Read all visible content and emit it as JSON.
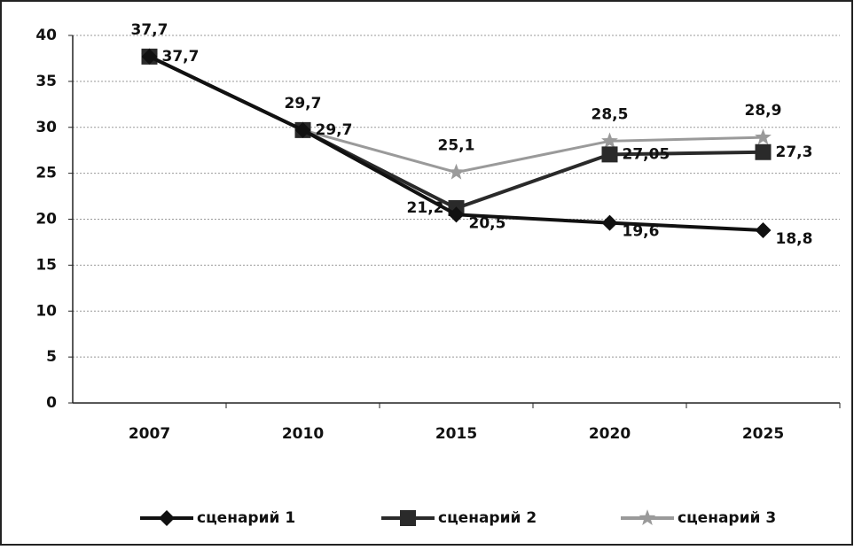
{
  "chart_data": {
    "type": "line",
    "categories": [
      "2007",
      "2010",
      "2015",
      "2020",
      "2025"
    ],
    "series": [
      {
        "name": "сценарий 1",
        "color": "#111111",
        "marker": "diamond",
        "values": [
          37.7,
          29.7,
          20.5,
          19.6,
          18.8
        ],
        "value_labels": [
          null,
          null,
          "20,5",
          "19,6",
          "18,8"
        ]
      },
      {
        "name": "сценарий 2",
        "color": "#2a2a2a",
        "marker": "square",
        "values": [
          37.7,
          29.7,
          21.2,
          27.05,
          27.3
        ],
        "value_labels": [
          "37,7",
          "29,7",
          "21,2",
          "27,05",
          "27,3"
        ]
      },
      {
        "name": "сценарий 3",
        "color": "#9a9a9a",
        "marker": "star",
        "values": [
          37.7,
          29.7,
          25.1,
          28.5,
          28.9
        ],
        "value_labels": [
          "37,7",
          "29,7",
          "25,1",
          "28,5",
          "28,9"
        ]
      }
    ],
    "ylim": [
      0,
      40
    ],
    "yticks": [
      0,
      5,
      10,
      15,
      20,
      25,
      30,
      35,
      40
    ],
    "grid": true,
    "legend": "bottom"
  }
}
